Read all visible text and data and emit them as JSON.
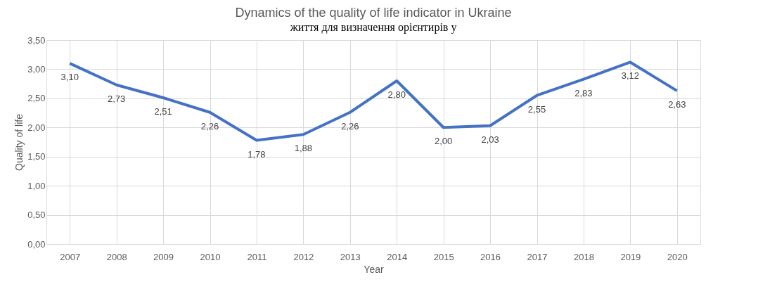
{
  "chart_data": {
    "type": "line",
    "title": "Dynamics of the quality of life indicator in Ukraine",
    "xlabel": "Year",
    "ylabel": "Quality of life",
    "annotations": [
      "життя для визначення орієнтирів у"
    ],
    "categories": [
      "2007",
      "2008",
      "2009",
      "2010",
      "2011",
      "2012",
      "2013",
      "2014",
      "2015",
      "2016",
      "2017",
      "2018",
      "2019",
      "2020"
    ],
    "series": [
      {
        "color": "#4472c4",
        "values": [
          3.1,
          2.73,
          2.51,
          2.26,
          1.78,
          1.88,
          2.26,
          2.8,
          2.0,
          2.03,
          2.55,
          2.83,
          3.12,
          2.63
        ],
        "value_labels": [
          "3,10",
          "2,73",
          "2,51",
          "2,26",
          "1,78",
          "1,88",
          "2,26",
          "2,80",
          "2,00",
          "2,03",
          "2,55",
          "2,83",
          "3,12",
          "2,63"
        ]
      }
    ],
    "ylim": [
      0,
      3.5
    ],
    "yticks": [
      {
        "value": 0,
        "label": "0,00"
      },
      {
        "value": 0.5,
        "label": "0,50"
      },
      {
        "value": 1,
        "label": "1,00"
      },
      {
        "value": 1.5,
        "label": "1,50"
      },
      {
        "value": 2,
        "label": "2,00"
      },
      {
        "value": 2.5,
        "label": "2,50"
      },
      {
        "value": 3,
        "label": "3,00"
      },
      {
        "value": 3.5,
        "label": "3,50"
      }
    ],
    "grid": true,
    "marker": "none",
    "line_style": "solid"
  }
}
